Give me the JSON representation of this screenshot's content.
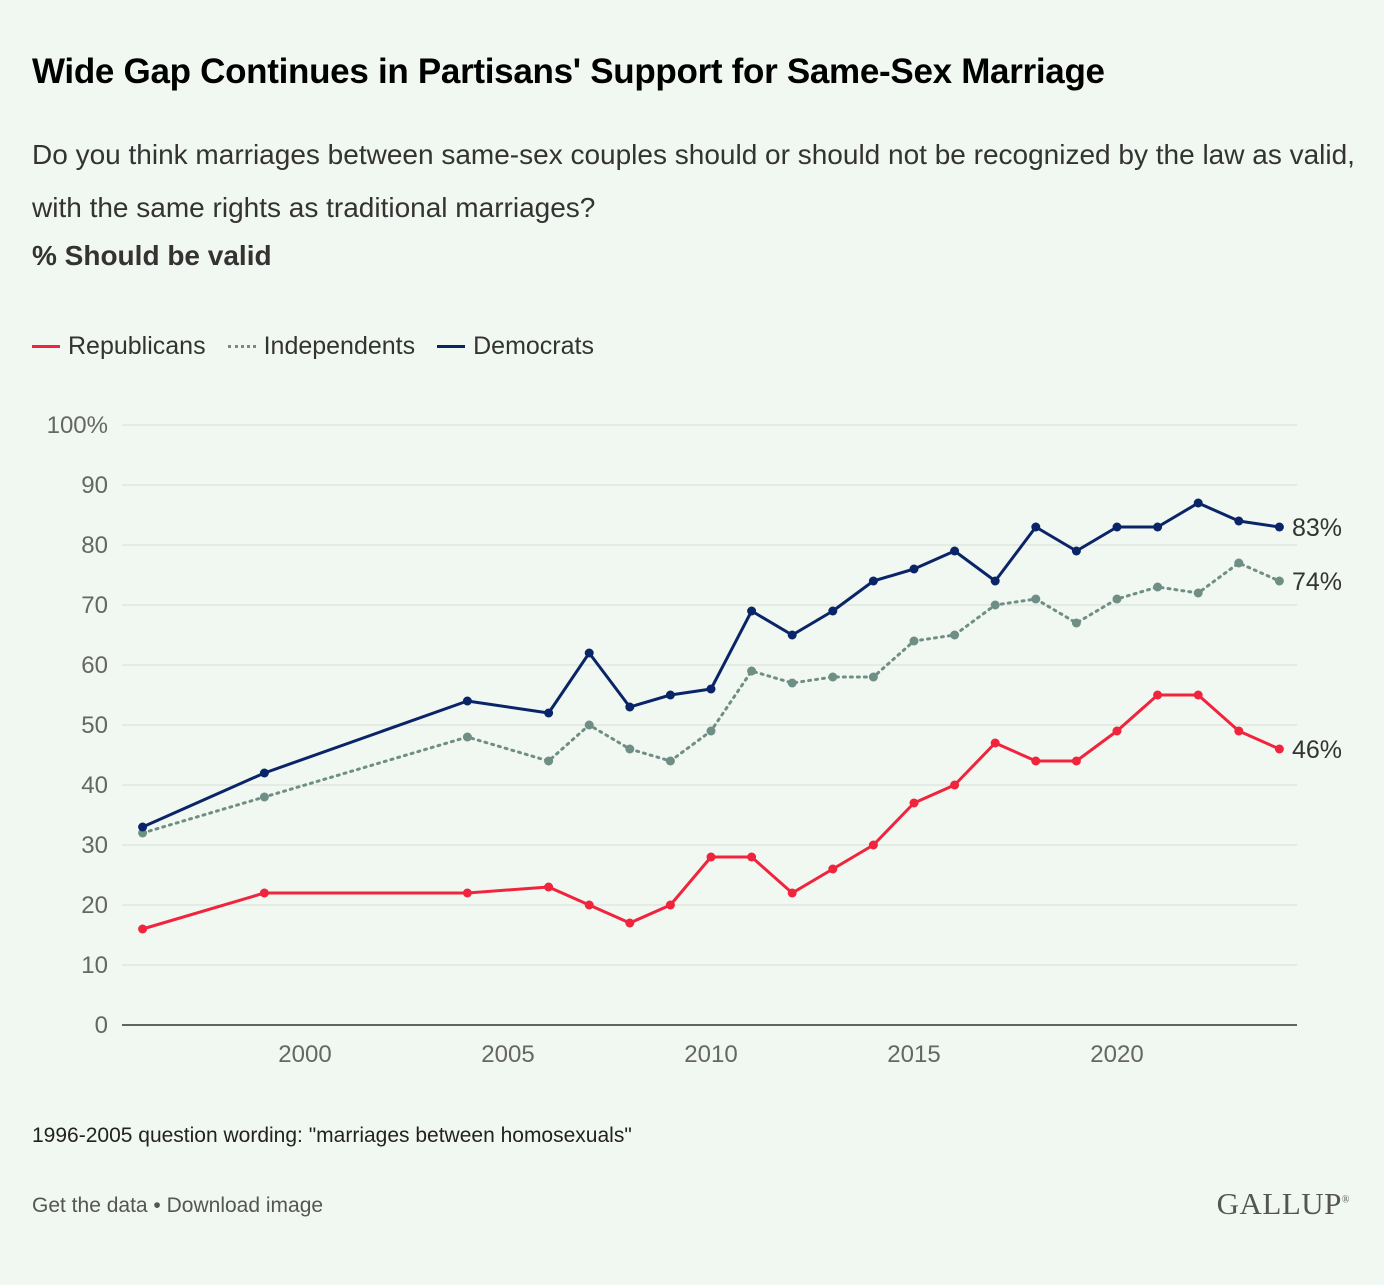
{
  "title": "Wide Gap Continues in Partisans' Support for Same-Sex Marriage",
  "subtitle": "Do you think marriages between same-sex couples should or should not be recognized by the law as valid, with the same rights as traditional marriages?",
  "measure": "% Should be valid",
  "note": "1996-2005 question wording: \"marriages between homosexuals\"",
  "links": {
    "get_data": "Get the data",
    "separator": " • ",
    "download": "Download image"
  },
  "logo": "GALLUP",
  "chart_data": {
    "type": "line",
    "title": "Wide Gap Continues in Partisans' Support for Same-Sex Marriage",
    "xlabel": "",
    "ylabel": "% Should be valid",
    "xlim": [
      1995.5,
      2025.5
    ],
    "ylim": [
      0,
      100
    ],
    "x_ticks": [
      2000,
      2005,
      2010,
      2015,
      2020
    ],
    "y_ticks": [
      0,
      10,
      20,
      30,
      40,
      50,
      60,
      70,
      80,
      90,
      100
    ],
    "y_tick_labels": [
      "0",
      "10",
      "20",
      "30",
      "40",
      "50",
      "60",
      "70",
      "80",
      "90",
      "100%"
    ],
    "grid": true,
    "legend_position": "top-left",
    "x": [
      1996,
      1999,
      2004,
      2006,
      2007,
      2008,
      2009,
      2010,
      2011,
      2012,
      2013,
      2014,
      2015,
      2016,
      2017,
      2018,
      2019,
      2020,
      2021,
      2022,
      2023,
      2024
    ],
    "series": [
      {
        "name": "Republicans",
        "color": "#f0243c",
        "style": "solid",
        "end_label": "46%",
        "values": [
          16,
          22,
          22,
          23,
          20,
          17,
          20,
          28,
          28,
          22,
          26,
          30,
          37,
          40,
          47,
          44,
          44,
          49,
          55,
          55,
          49,
          46
        ]
      },
      {
        "name": "Independents",
        "color": "#6f8f86",
        "style": "dotted",
        "end_label": "74%",
        "values": [
          32,
          38,
          48,
          44,
          50,
          46,
          44,
          49,
          59,
          57,
          58,
          58,
          64,
          65,
          70,
          71,
          67,
          71,
          73,
          72,
          77,
          74
        ]
      },
      {
        "name": "Democrats",
        "color": "#0a2468",
        "style": "solid",
        "end_label": "83%",
        "values": [
          33,
          42,
          54,
          52,
          62,
          53,
          55,
          56,
          69,
          65,
          69,
          74,
          76,
          79,
          74,
          83,
          79,
          83,
          83,
          87,
          84,
          83
        ]
      }
    ]
  }
}
